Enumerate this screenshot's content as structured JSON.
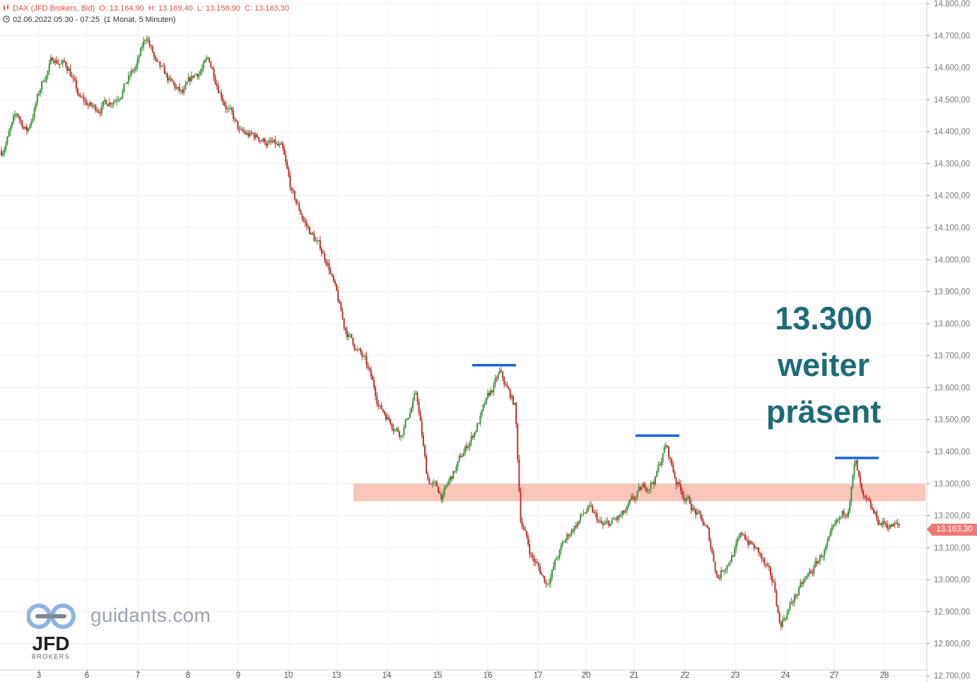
{
  "header": {
    "instrument": "DAX (JFD Brokers, Bid)",
    "open": "O: 13.164,90",
    "high": "H: 13.169,40",
    "low": "L: 13.158,90",
    "close": "C: 13.163,30",
    "timerange": "02.06.2022 05:30 - 07:25",
    "interval": "(1 Monat, 5 Minuten)"
  },
  "annotation": {
    "line1": "13.300",
    "line2": "weiter",
    "line3": "präsent"
  },
  "last_price_label": "13.163,30",
  "brand": "guidants.com",
  "logo_text": "JFD",
  "logo_sub": "BROKERS",
  "colors": {
    "up": "#3f8f3f",
    "down": "#b8322b",
    "zone": "#f8c0b3",
    "marker": "#1565e0",
    "headline": "#1d6b78",
    "price_tag": "#f07a75",
    "grid": "#ececec"
  },
  "chart_data": {
    "type": "candlestick",
    "title": "",
    "y_range": [
      12700,
      14800
    ],
    "y_ticks": [
      "12.700,00",
      "12.800,00",
      "12.900,00",
      "13.000,00",
      "13.100,00",
      "13.200,00",
      "13.300,00",
      "13.400,00",
      "13.500,00",
      "13.600,00",
      "13.700,00",
      "13.800,00",
      "13.900,00",
      "14.000,00",
      "14.100,00",
      "14.200,00",
      "14.300,00",
      "14.400,00",
      "14.500,00",
      "14.600,00",
      "14.700,00",
      "14.800,00"
    ],
    "y_tick_values": [
      12700,
      12800,
      12900,
      13000,
      13100,
      13200,
      13300,
      13400,
      13500,
      13600,
      13700,
      13800,
      13900,
      14000,
      14100,
      14200,
      14300,
      14400,
      14500,
      14600,
      14700,
      14800
    ],
    "x_ticks": [
      "3",
      "6",
      "7",
      "8",
      "9",
      "10",
      "13",
      "14",
      "15",
      "16",
      "17",
      "20",
      "21",
      "22",
      "23",
      "24",
      "27",
      "28"
    ],
    "path": [
      {
        "t": 0.0,
        "v": 14340
      },
      {
        "t": 0.3,
        "v": 14450
      },
      {
        "t": 0.5,
        "v": 14400
      },
      {
        "t": 0.8,
        "v": 14560
      },
      {
        "t": 1.0,
        "v": 14630
      },
      {
        "t": 1.3,
        "v": 14600
      },
      {
        "t": 1.5,
        "v": 14500
      },
      {
        "t": 1.8,
        "v": 14470
      },
      {
        "t": 2.2,
        "v": 14510
      },
      {
        "t": 2.6,
        "v": 14600
      },
      {
        "t": 2.8,
        "v": 14700
      },
      {
        "t": 3.0,
        "v": 14600
      },
      {
        "t": 3.3,
        "v": 14540
      },
      {
        "t": 3.5,
        "v": 14510
      },
      {
        "t": 3.7,
        "v": 14570
      },
      {
        "t": 4.0,
        "v": 14620
      },
      {
        "t": 4.3,
        "v": 14500
      },
      {
        "t": 4.6,
        "v": 14390
      },
      {
        "t": 5.0,
        "v": 14380
      },
      {
        "t": 5.4,
        "v": 14340
      },
      {
        "t": 5.6,
        "v": 14200
      },
      {
        "t": 5.9,
        "v": 14100
      },
      {
        "t": 6.3,
        "v": 13990
      },
      {
        "t": 6.6,
        "v": 13790
      },
      {
        "t": 7.0,
        "v": 13680
      },
      {
        "t": 7.3,
        "v": 13540
      },
      {
        "t": 7.7,
        "v": 13460
      },
      {
        "t": 8.0,
        "v": 13580
      },
      {
        "t": 8.2,
        "v": 13320
      },
      {
        "t": 8.5,
        "v": 13260
      },
      {
        "t": 8.8,
        "v": 13360
      },
      {
        "t": 9.1,
        "v": 13460
      },
      {
        "t": 9.4,
        "v": 13570
      },
      {
        "t": 9.6,
        "v": 13640
      },
      {
        "t": 9.9,
        "v": 13540
      },
      {
        "t": 10.0,
        "v": 13200
      },
      {
        "t": 10.2,
        "v": 13080
      },
      {
        "t": 10.5,
        "v": 12990
      },
      {
        "t": 10.8,
        "v": 13100
      },
      {
        "t": 11.0,
        "v": 13160
      },
      {
        "t": 11.3,
        "v": 13220
      },
      {
        "t": 11.6,
        "v": 13160
      },
      {
        "t": 12.0,
        "v": 13200
      },
      {
        "t": 12.3,
        "v": 13270
      },
      {
        "t": 12.6,
        "v": 13320
      },
      {
        "t": 12.8,
        "v": 13420
      },
      {
        "t": 13.0,
        "v": 13310
      },
      {
        "t": 13.3,
        "v": 13230
      },
      {
        "t": 13.6,
        "v": 13150
      },
      {
        "t": 13.8,
        "v": 13010
      },
      {
        "t": 14.0,
        "v": 13060
      },
      {
        "t": 14.3,
        "v": 13140
      },
      {
        "t": 14.6,
        "v": 13080
      },
      {
        "t": 14.9,
        "v": 12970
      },
      {
        "t": 15.0,
        "v": 12860
      },
      {
        "t": 15.3,
        "v": 12950
      },
      {
        "t": 15.6,
        "v": 13020
      },
      {
        "t": 16.0,
        "v": 13130
      },
      {
        "t": 16.3,
        "v": 13220
      },
      {
        "t": 16.45,
        "v": 13370
      },
      {
        "t": 16.6,
        "v": 13240
      },
      {
        "t": 16.9,
        "v": 13180
      },
      {
        "t": 17.3,
        "v": 13163
      }
    ],
    "markers": [
      {
        "label": "peak 16",
        "value": 13670
      },
      {
        "label": "peak 21",
        "value": 13450
      },
      {
        "label": "peak 27",
        "value": 13380
      }
    ],
    "zone": {
      "from": 13245,
      "to": 13300
    }
  }
}
